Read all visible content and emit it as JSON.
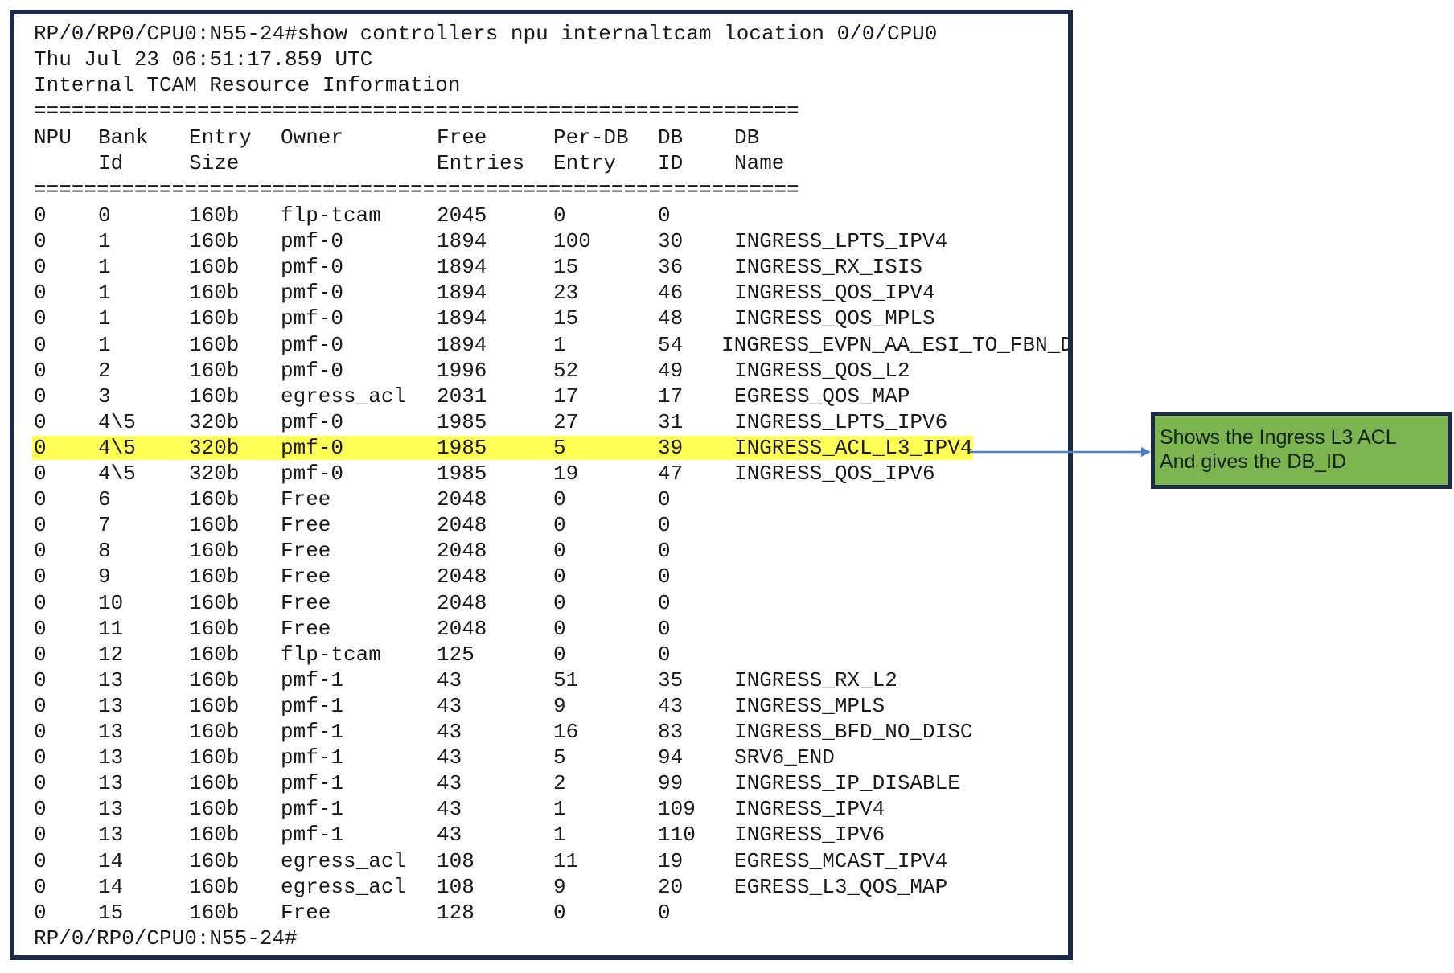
{
  "terminal": {
    "command_line": "RP/0/RP0/CPU0:N55-24#show controllers npu internaltcam location 0/0/CPU0",
    "timestamp": "Thu Jul 23 06:51:17.859 UTC",
    "heading": "Internal TCAM Resource Information",
    "separator": "=============================================================",
    "header_row1": [
      "NPU",
      "Bank",
      "Entry",
      "Owner",
      "Free",
      "Per-DB",
      "DB",
      "DB"
    ],
    "header_row2": [
      "",
      "Id",
      "Size",
      "",
      "Entries",
      "Entry",
      "ID",
      "Name"
    ],
    "rows": [
      [
        "0",
        "0",
        "160b",
        "flp-tcam",
        "2045",
        "0",
        "0",
        ""
      ],
      [
        "0",
        "1",
        "160b",
        "pmf-0",
        "1894",
        "100",
        "30",
        "INGRESS_LPTS_IPV4"
      ],
      [
        "0",
        "1",
        "160b",
        "pmf-0",
        "1894",
        "15",
        "36",
        "INGRESS_RX_ISIS"
      ],
      [
        "0",
        "1",
        "160b",
        "pmf-0",
        "1894",
        "23",
        "46",
        "INGRESS_QOS_IPV4"
      ],
      [
        "0",
        "1",
        "160b",
        "pmf-0",
        "1894",
        "15",
        "48",
        "INGRESS_QOS_MPLS"
      ],
      [
        "0",
        "1",
        "160b",
        "pmf-0",
        "1894",
        "1",
        "54",
        "INGRESS_EVPN_AA_ESI_TO_FBN_DB"
      ],
      [
        "0",
        "2",
        "160b",
        "pmf-0",
        "1996",
        "52",
        "49",
        "INGRESS_QOS_L2"
      ],
      [
        "0",
        "3",
        "160b",
        "egress_acl",
        "2031",
        "17",
        "17",
        "EGRESS_QOS_MAP"
      ],
      [
        "0",
        "4\\5",
        "320b",
        "pmf-0",
        "1985",
        "27",
        "31",
        "INGRESS_LPTS_IPV6"
      ],
      [
        "0",
        "4\\5",
        "320b",
        "pmf-0",
        "1985",
        "5",
        "39",
        "INGRESS_ACL_L3_IPV4"
      ],
      [
        "0",
        "4\\5",
        "320b",
        "pmf-0",
        "1985",
        "19",
        "47",
        "INGRESS_QOS_IPV6"
      ],
      [
        "0",
        "6",
        "160b",
        "Free",
        "2048",
        "0",
        "0",
        ""
      ],
      [
        "0",
        "7",
        "160b",
        "Free",
        "2048",
        "0",
        "0",
        ""
      ],
      [
        "0",
        "8",
        "160b",
        "Free",
        "2048",
        "0",
        "0",
        ""
      ],
      [
        "0",
        "9",
        "160b",
        "Free",
        "2048",
        "0",
        "0",
        ""
      ],
      [
        "0",
        "10",
        "160b",
        "Free",
        "2048",
        "0",
        "0",
        ""
      ],
      [
        "0",
        "11",
        "160b",
        "Free",
        "2048",
        "0",
        "0",
        ""
      ],
      [
        "0",
        "12",
        "160b",
        "flp-tcam",
        "125",
        "0",
        "0",
        ""
      ],
      [
        "0",
        "13",
        "160b",
        "pmf-1",
        "43",
        "51",
        "35",
        "INGRESS_RX_L2"
      ],
      [
        "0",
        "13",
        "160b",
        "pmf-1",
        "43",
        "9",
        "43",
        "INGRESS_MPLS"
      ],
      [
        "0",
        "13",
        "160b",
        "pmf-1",
        "43",
        "16",
        "83",
        "INGRESS_BFD_NO_DISC"
      ],
      [
        "0",
        "13",
        "160b",
        "pmf-1",
        "43",
        "5",
        "94",
        "SRV6_END"
      ],
      [
        "0",
        "13",
        "160b",
        "pmf-1",
        "43",
        "2",
        "99",
        "INGRESS_IP_DISABLE"
      ],
      [
        "0",
        "13",
        "160b",
        "pmf-1",
        "43",
        "1",
        "109",
        "INGRESS_IPV4"
      ],
      [
        "0",
        "13",
        "160b",
        "pmf-1",
        "43",
        "1",
        "110",
        "INGRESS_IPV6"
      ],
      [
        "0",
        "14",
        "160b",
        "egress_acl",
        "108",
        "11",
        "19",
        "EGRESS_MCAST_IPV4"
      ],
      [
        "0",
        "14",
        "160b",
        "egress_acl",
        "108",
        "9",
        "20",
        "EGRESS_L3_QOS_MAP"
      ],
      [
        "0",
        "15",
        "160b",
        "Free",
        "128",
        "0",
        "0",
        ""
      ]
    ],
    "highlighted_row_index": 9,
    "prompt": "RP/0/RP0/CPU0:N55-24#"
  },
  "callout": {
    "line1": "Shows the Ingress L3 ACL",
    "line2": "And gives the DB_ID"
  },
  "colors": {
    "frame_border": "#1b2a45",
    "highlight": "#ffff55",
    "callout_fill": "#7cb450",
    "arrow": "#4a7fd0"
  }
}
